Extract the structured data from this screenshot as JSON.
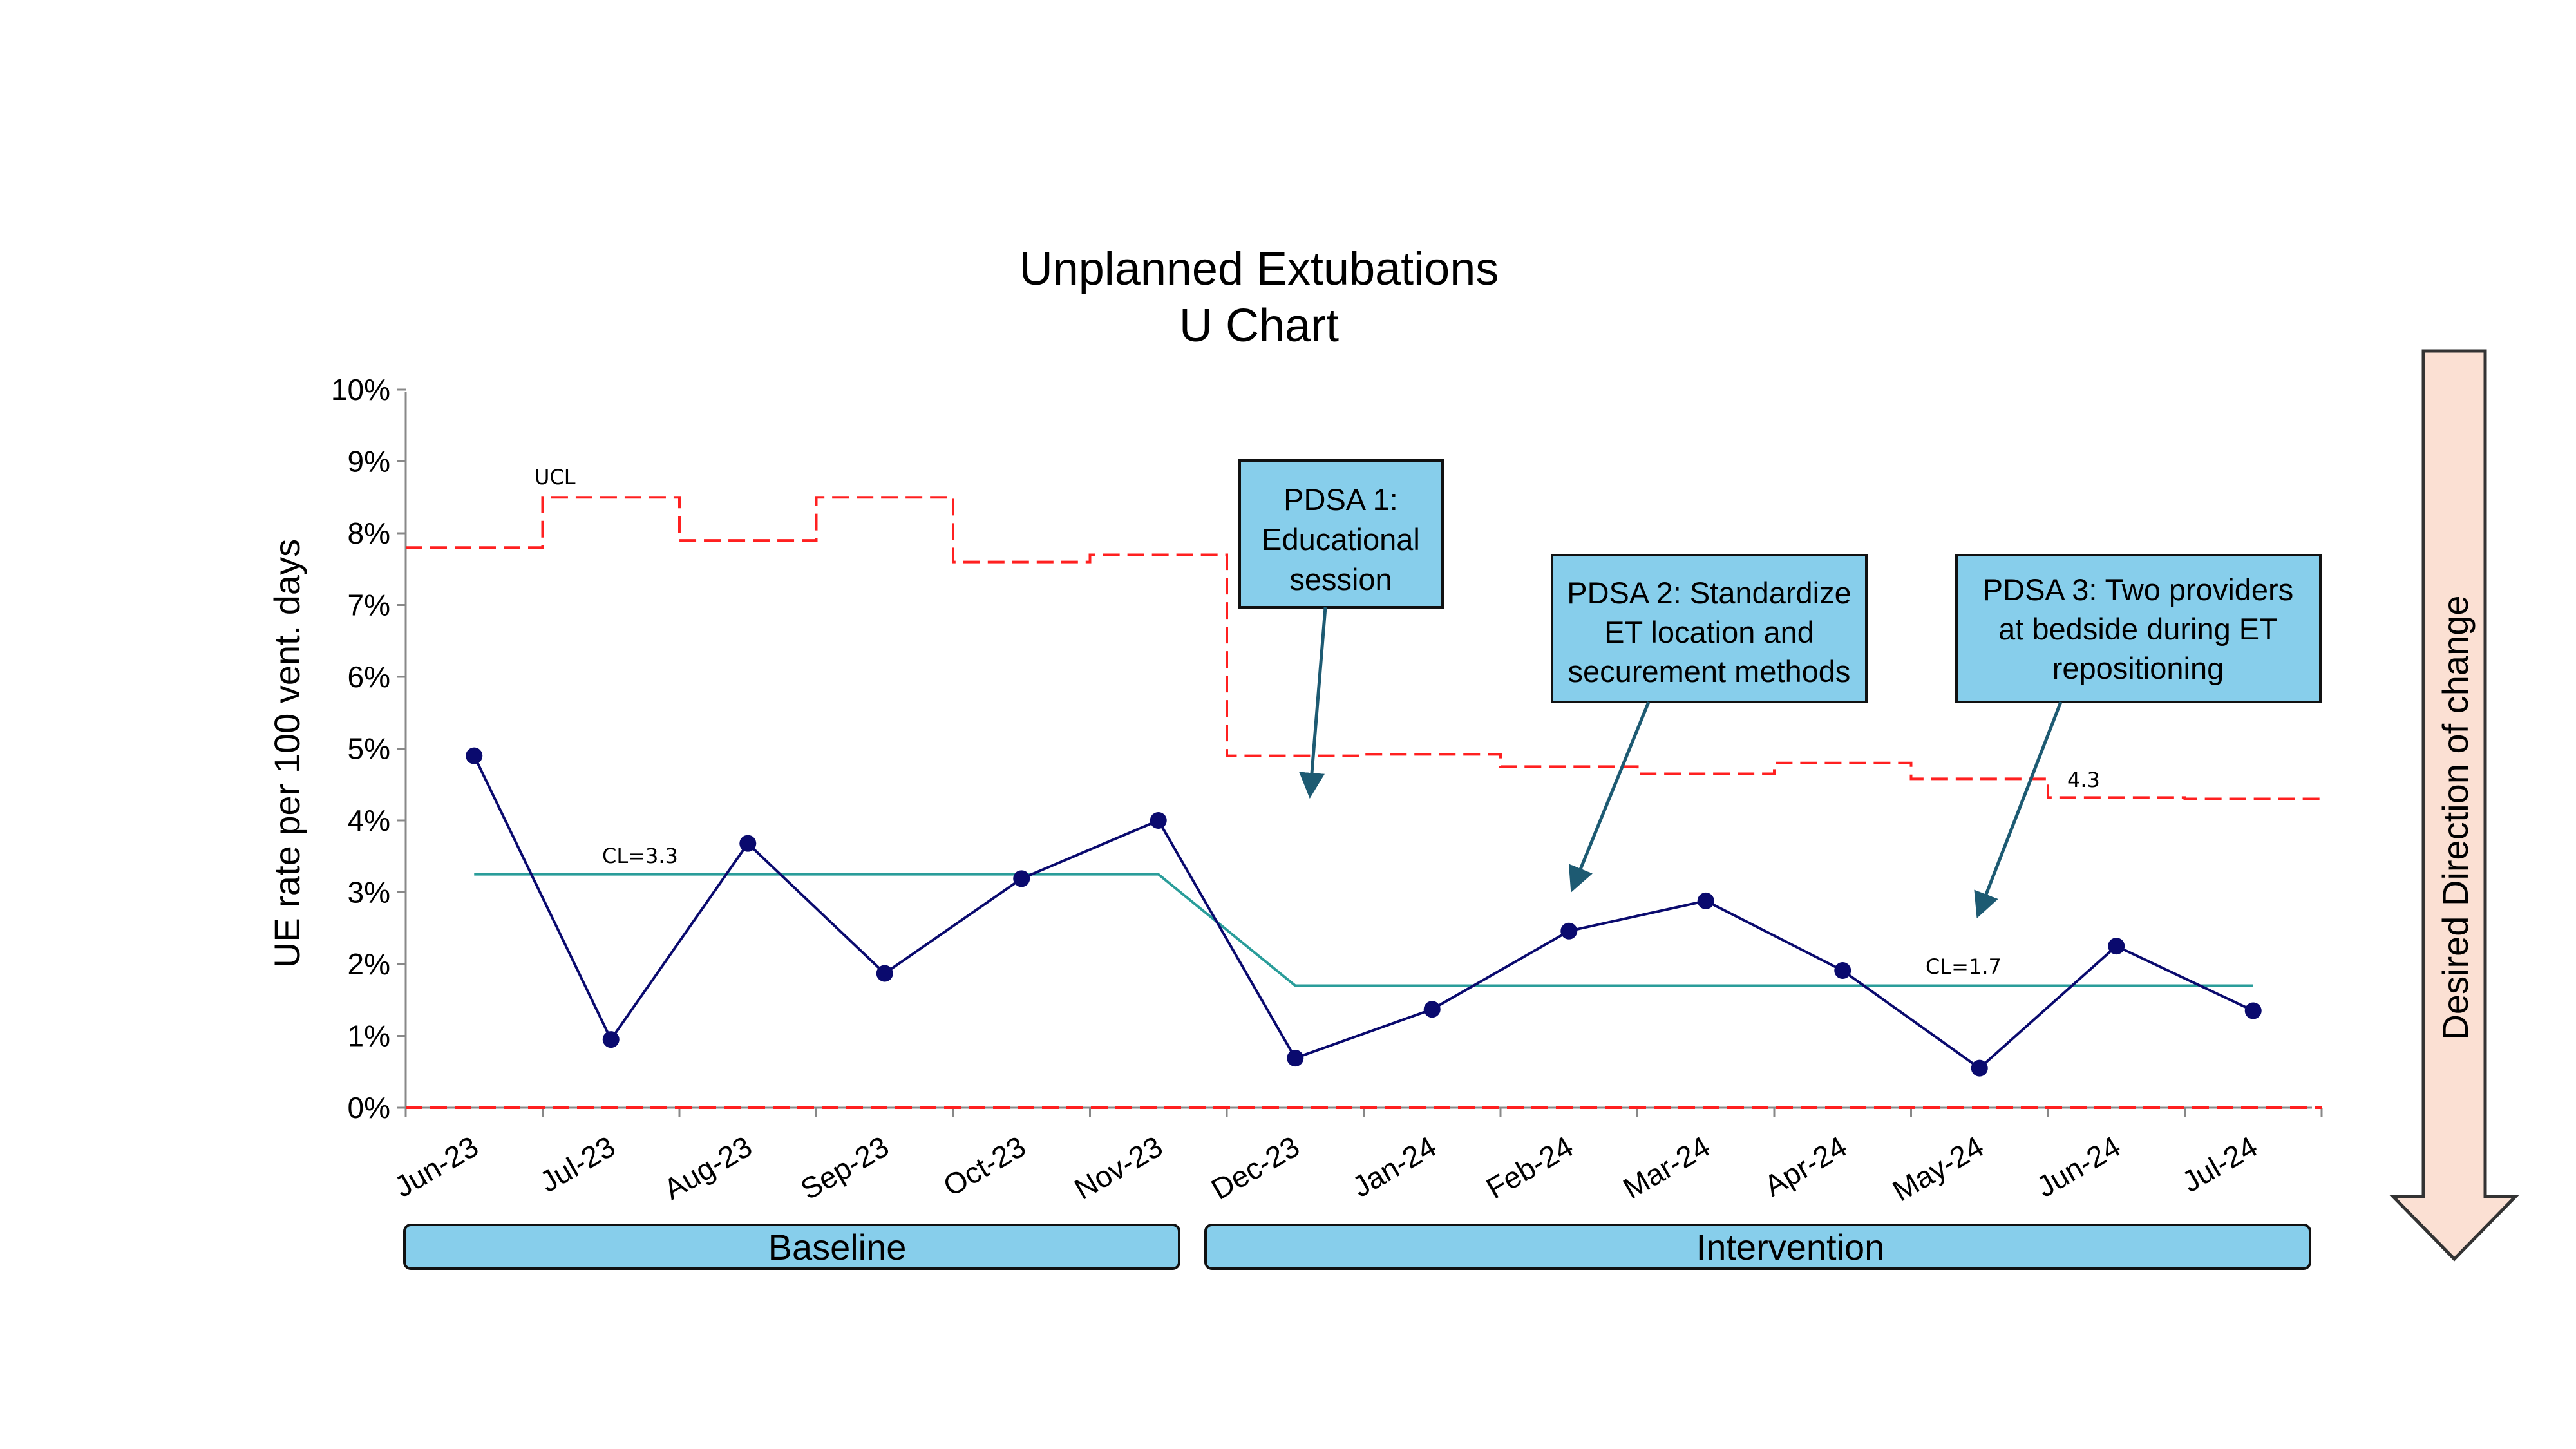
{
  "chart_data": {
    "type": "line",
    "title_lines": [
      "Unplanned Extubations",
      "U Chart"
    ],
    "ylabel": "UE rate per 100 vent. days",
    "ylim": [
      0,
      10
    ],
    "y_ticks": [
      "0%",
      "1%",
      "2%",
      "3%",
      "4%",
      "5%",
      "6%",
      "7%",
      "8%",
      "9%",
      "10%"
    ],
    "categories": [
      "Jun-23",
      "Jul-23",
      "Aug-23",
      "Sep-23",
      "Oct-23",
      "Nov-23",
      "Dec-23",
      "Jan-24",
      "Feb-24",
      "Mar-24",
      "Apr-24",
      "May-24",
      "Jun-24",
      "Jul-24"
    ],
    "series": [
      {
        "values": [
          4.9,
          0.95,
          3.68,
          1.87,
          3.19,
          4.0,
          0.69,
          1.37,
          2.46,
          2.88,
          1.91,
          0.55,
          2.25,
          1.35
        ],
        "color": "#0a0a6e"
      }
    ],
    "center_line": {
      "values": [
        3.25,
        3.25,
        3.25,
        3.25,
        3.25,
        3.25,
        1.7,
        1.7,
        1.7,
        1.7,
        1.7,
        1.7,
        1.7,
        1.7
      ],
      "color": "#2a9d9a",
      "labels": [
        "CL=3.3",
        "CL=1.7"
      ]
    },
    "ucl": {
      "values": [
        7.8,
        8.5,
        7.9,
        8.5,
        7.6,
        7.7,
        4.9,
        4.92,
        4.75,
        4.65,
        4.8,
        4.58,
        4.32,
        4.3
      ],
      "color": "#ff2020",
      "labels": [
        "UCL",
        "4.3"
      ]
    },
    "lcl": {
      "values": [
        0,
        0,
        0,
        0,
        0,
        0,
        0,
        0,
        0,
        0,
        0,
        0,
        0,
        0
      ],
      "color": "#ff2020"
    },
    "annotations": [
      {
        "lines": [
          "PDSA 1:",
          "Educational",
          "session"
        ]
      },
      {
        "lines": [
          "PDSA 2: Standardize",
          "ET location and",
          "securement methods"
        ]
      },
      {
        "lines": [
          "PDSA 3: Two providers",
          "at bedside during ET",
          "repositioning"
        ]
      }
    ],
    "phases": [
      "Baseline",
      "Intervention"
    ],
    "direction_label": "Desired Direction of change",
    "colors": {
      "callout_fill": "#87ceeb",
      "phase_fill": "#87ceeb",
      "arrow_fill": "#fbe0d3",
      "axis": "#888888"
    },
    "grid": false
  }
}
